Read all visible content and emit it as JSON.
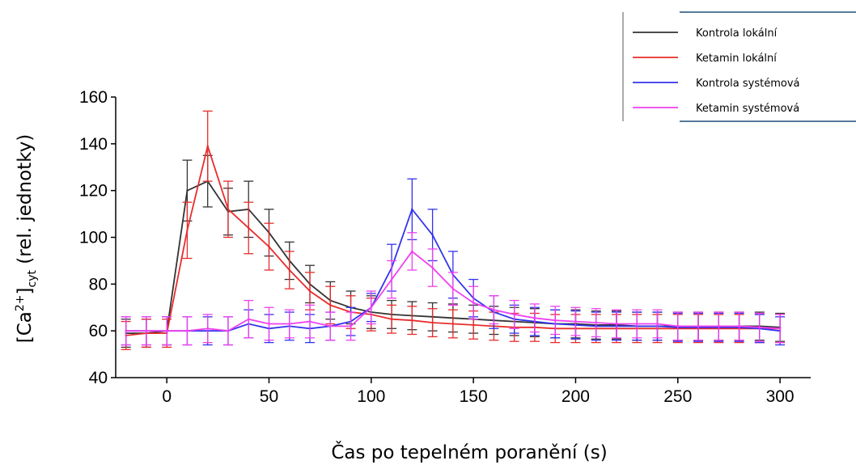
{
  "chart_data": {
    "type": "line",
    "xlabel": "Čas po tepelném poranění (s)",
    "ylabel_parts": {
      "pre": "[Ca",
      "sup": "2+",
      "post": "]",
      "sub": "cyt",
      "tail": " (rel. jednotky)"
    },
    "xlim": [
      -25,
      315
    ],
    "ylim": [
      40,
      160
    ],
    "xticks": [
      0,
      50,
      100,
      150,
      200,
      250,
      300
    ],
    "yticks": [
      40,
      60,
      80,
      100,
      120,
      140,
      160
    ],
    "legend_position": "top-right",
    "x": [
      -20,
      -10,
      0,
      10,
      20,
      30,
      40,
      50,
      60,
      70,
      80,
      90,
      100,
      110,
      120,
      130,
      140,
      150,
      160,
      170,
      180,
      190,
      200,
      210,
      220,
      230,
      240,
      250,
      260,
      270,
      280,
      290,
      300
    ],
    "series": [
      {
        "name": "Kontrola lokální",
        "color": "#333333",
        "values": [
          59,
          59,
          60,
          120,
          124,
          111,
          112,
          102,
          90,
          80,
          73,
          70,
          68,
          67,
          66.5,
          66,
          65.5,
          65,
          64.5,
          64,
          63.5,
          63,
          63,
          62.5,
          62.5,
          62,
          62,
          62,
          62,
          62,
          62,
          62,
          61.5
        ],
        "errors": [
          6,
          6,
          6,
          13,
          11,
          10,
          12,
          10,
          8,
          8,
          8,
          7,
          7,
          6,
          6,
          6,
          6,
          6,
          6,
          6,
          6,
          6,
          6,
          6,
          6,
          6,
          6,
          6,
          6,
          6,
          6,
          6,
          6
        ]
      },
      {
        "name": "Ketamin lokální",
        "color": "#e82c2c",
        "values": [
          58,
          59,
          59,
          103,
          139,
          112,
          104,
          96,
          86,
          77,
          71,
          68,
          67,
          65,
          64.5,
          63.5,
          63,
          62.5,
          62,
          61.5,
          61.5,
          61,
          61,
          61,
          61,
          61,
          61,
          61,
          61,
          61,
          61,
          61,
          61
        ],
        "errors": [
          6,
          6,
          6,
          12,
          15,
          12,
          11,
          10,
          8,
          8,
          8,
          7,
          7,
          6,
          6,
          6,
          6,
          6,
          6,
          6,
          6,
          6,
          6,
          6,
          6,
          6,
          6,
          6,
          6,
          6,
          6,
          6,
          6
        ]
      },
      {
        "name": "Kontrola systémová",
        "color": "#3333ee",
        "values": [
          60,
          60,
          60,
          60,
          60,
          60,
          63,
          61,
          62,
          61,
          62,
          64,
          70,
          87,
          112,
          101,
          84,
          74,
          68,
          65,
          64,
          63,
          62.5,
          62,
          62,
          62,
          62,
          61.5,
          61.5,
          61.5,
          61.5,
          61,
          60
        ],
        "errors": [
          6,
          6,
          6,
          6,
          6,
          6,
          6,
          6,
          6,
          6,
          6,
          6,
          6,
          10,
          13,
          11,
          10,
          8,
          7,
          6,
          6,
          6,
          6,
          6,
          6,
          6,
          6,
          6,
          6,
          6,
          6,
          6,
          6
        ]
      },
      {
        "name": "Ketamin systémová",
        "color": "#f040f0",
        "values": [
          60,
          60,
          60,
          60,
          61,
          60,
          65,
          63,
          63,
          64,
          62,
          62,
          70,
          82,
          94,
          87,
          78,
          72,
          69,
          67,
          65.5,
          64.5,
          64,
          63.5,
          63,
          63,
          63,
          62,
          62,
          62,
          62,
          61.5,
          61
        ],
        "errors": [
          6,
          6,
          6,
          6,
          6,
          6,
          8,
          7,
          6,
          7,
          6,
          6,
          7,
          8,
          8,
          8,
          7,
          7,
          6,
          6,
          6,
          6,
          6,
          6,
          6,
          6,
          6,
          6,
          6,
          6,
          6,
          6,
          6
        ]
      }
    ]
  }
}
